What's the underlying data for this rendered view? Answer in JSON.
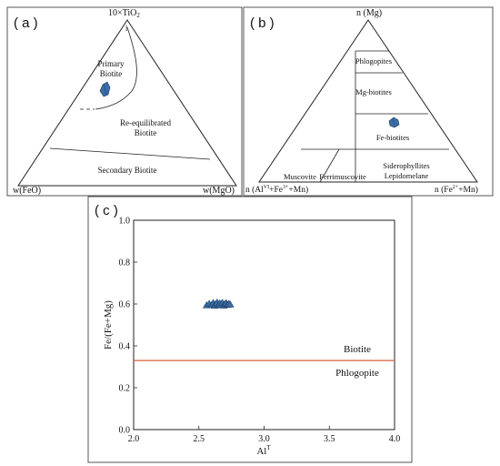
{
  "panels": {
    "a": {
      "label": "( a )",
      "apex_top": "10×TiO",
      "apex_top_sub": "2",
      "apex_left": "w(FeO)",
      "apex_right": "w(MgO)",
      "region_top": [
        "Primary",
        "Biotite"
      ],
      "region_middle": [
        "Re-equilibrated",
        "Biotite"
      ],
      "region_bottom": "Secondary Biotite",
      "curve_mark": "l"
    },
    "b": {
      "label": "( b )",
      "apex_top": "n (Mg)",
      "apex_left_pre": "n (Al",
      "apex_left_sup1": "VI",
      "apex_left_mid": "+Fe",
      "apex_left_sup2": "3+",
      "apex_left_post": "+Mn)",
      "apex_right_pre": "n (Fe",
      "apex_right_sup": "2+",
      "apex_right_post": "+Mn)",
      "regions": {
        "phlogopites": "Phlogopites",
        "mg_biotites": "Mg-biotites",
        "fe_biotites": "Fe-biotites",
        "muscovite": "Muscovite",
        "ferrimuscovite": "Ferrimuscovite",
        "sidero_1": "Siderophyllites",
        "sidero_2": "Lepidomelane"
      }
    },
    "c": {
      "label": "( c )",
      "xlabel_pre": "Al",
      "xlabel_sup": "T",
      "ylabel": "Fe/(Fe+Mg)",
      "boundary_above": "Biotite",
      "boundary_below": "Phlogopite",
      "boundary_color": "#d9603b"
    }
  },
  "chart_data": {
    "type": "scatter",
    "xlim": [
      2.0,
      4.0
    ],
    "ylim": [
      0.0,
      1.0
    ],
    "x_ticks": [
      "2.0",
      "2.5",
      "3.0",
      "3.5",
      "4.0"
    ],
    "y_ticks": [
      "0.0",
      "0.2",
      "0.4",
      "0.6",
      "0.8",
      "1.0"
    ],
    "boundary_y": 0.33,
    "series": [
      {
        "points": [
          [
            2.56,
            0.594
          ],
          [
            2.58,
            0.601
          ],
          [
            2.6,
            0.597
          ],
          [
            2.61,
            0.605
          ],
          [
            2.62,
            0.592
          ],
          [
            2.63,
            0.6
          ],
          [
            2.64,
            0.607
          ],
          [
            2.65,
            0.595
          ],
          [
            2.66,
            0.603
          ],
          [
            2.67,
            0.598
          ],
          [
            2.68,
            0.606
          ],
          [
            2.69,
            0.593
          ],
          [
            2.7,
            0.6
          ],
          [
            2.71,
            0.604
          ],
          [
            2.72,
            0.596
          ],
          [
            2.73,
            0.601
          ],
          [
            2.74,
            0.598
          ]
        ]
      }
    ],
    "marker_color": "#3a6ea8"
  }
}
